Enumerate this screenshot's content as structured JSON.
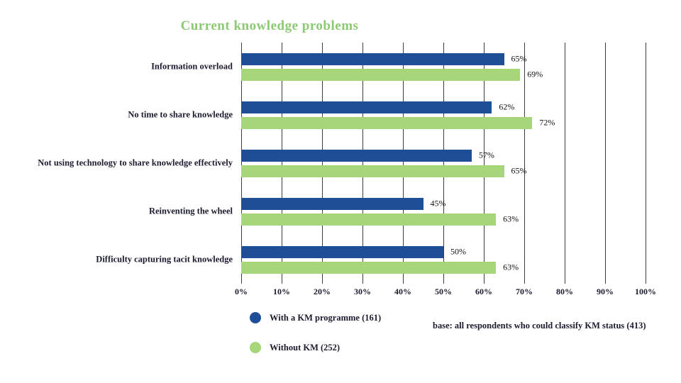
{
  "title": "Current knowledge problems",
  "colors": {
    "series_blue": "#1f4e96",
    "series_green": "#a6d57a",
    "title_green": "#8cc973",
    "gridline": "#3d3d3d",
    "text": "#1b1b2f"
  },
  "chart_data": {
    "type": "bar",
    "orientation": "horizontal",
    "title": "Current knowledge problems",
    "categories": [
      "Information overload",
      "No time to share knowledge",
      "Not using technology to share knowledge effectively",
      "Reinventing the wheel",
      "Difficulty capturing tacit knowledge"
    ],
    "series": [
      {
        "name": "With a KM programme (161)",
        "color": "#1f4e96",
        "values": [
          65,
          62,
          57,
          45,
          50
        ]
      },
      {
        "name": "Without KM (252)",
        "color": "#a6d57a",
        "values": [
          69,
          72,
          65,
          63,
          63
        ]
      }
    ],
    "value_suffix": "%",
    "xlim": [
      0,
      100
    ],
    "x_ticks": [
      "0%",
      "10%",
      "20%",
      "30%",
      "40%",
      "50%",
      "60%",
      "70%",
      "80%",
      "90%",
      "100%"
    ],
    "grid": true,
    "legend_position": "bottom"
  },
  "note": "base: all respondents who could classify KM status (413)"
}
